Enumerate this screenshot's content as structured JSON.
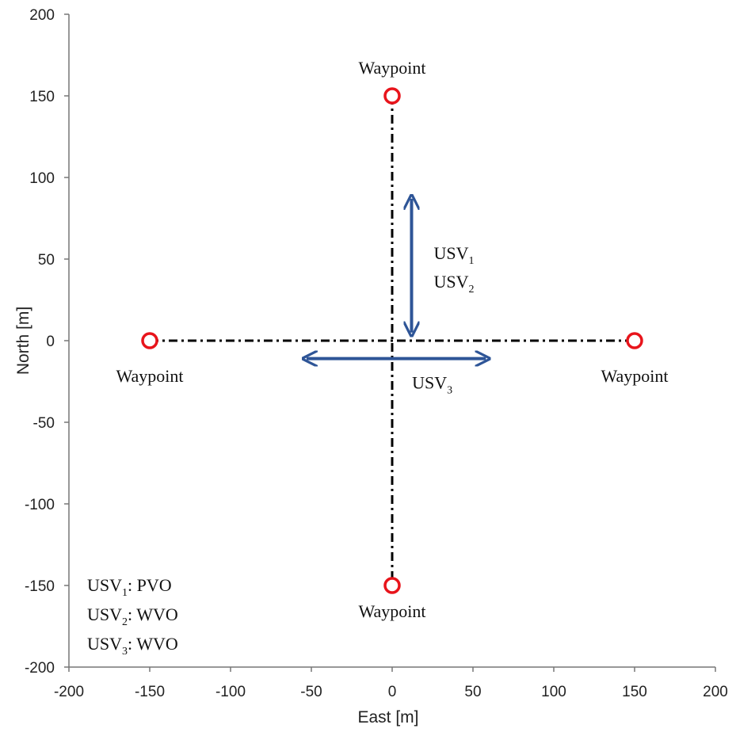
{
  "chart_data": {
    "type": "scatter",
    "xlabel": "East [m]",
    "ylabel": "North [m]",
    "xlim": [
      -200,
      200
    ],
    "ylim": [
      -200,
      200
    ],
    "xticks": [
      -200,
      -150,
      -100,
      -50,
      0,
      50,
      100,
      150,
      200
    ],
    "yticks": [
      -200,
      -150,
      -100,
      -50,
      0,
      50,
      100,
      150,
      200
    ],
    "x": [
      0,
      -150,
      150,
      0
    ],
    "y": [
      150,
      0,
      0,
      -150
    ],
    "point_labels": [
      "Waypoint",
      "Waypoint",
      "Waypoint",
      "Waypoint"
    ],
    "color": "#e8141b",
    "paths": [
      {
        "x": [
          -150,
          150
        ],
        "y": [
          0,
          0
        ]
      },
      {
        "x": [
          0,
          0
        ],
        "y": [
          150,
          -150
        ]
      }
    ],
    "path_color": "#000000",
    "arrows": [
      {
        "x": [
          12,
          12
        ],
        "y": [
          87,
          5
        ],
        "labels": [
          {
            "text": "USV",
            "sub": "1"
          },
          {
            "text": "USV",
            "sub": "2"
          }
        ]
      },
      {
        "x": [
          -53,
          58
        ],
        "y": [
          -11,
          -11
        ],
        "labels": [
          {
            "text": "USV",
            "sub": "3"
          }
        ]
      }
    ],
    "arrow_color": "#2e5597",
    "notes": [
      {
        "text": "USV",
        "sub": "1",
        "rest": ": PVO"
      },
      {
        "text": "USV",
        "sub": "2",
        "rest": ": WVO"
      },
      {
        "text": "USV",
        "sub": "3",
        "rest": ": WVO"
      }
    ]
  }
}
